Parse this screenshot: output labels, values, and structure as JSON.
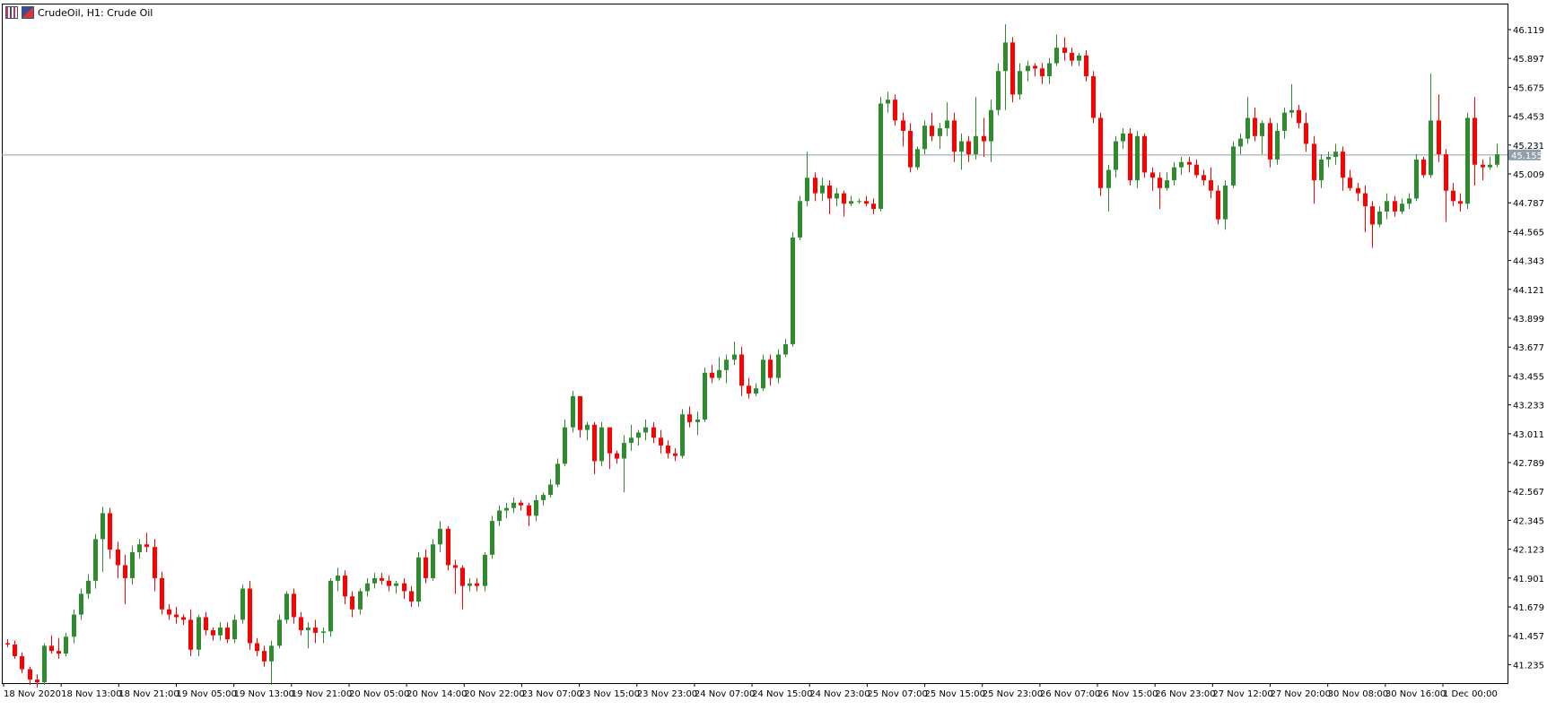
{
  "window": {
    "title": "CrudeOil, H1:  Crude Oil",
    "icons": [
      "chart-bars-icon",
      "chart-split-icon"
    ]
  },
  "colors": {
    "bull": "#2e8b2e",
    "bear": "#ff0000",
    "grid_frame": "#000000",
    "bid_line": "#8fa0a8",
    "price_tag_bg": "#8fa0a8",
    "price_tag_text": "#ffffff"
  },
  "chart_data": {
    "type": "candlestick",
    "symbol": "CrudeOil",
    "timeframe": "H1",
    "description": "Crude Oil",
    "current_price": "45.155",
    "ylim": [
      41.1,
      46.2
    ],
    "y_ticks": [
      "46.119",
      "45.897",
      "45.675",
      "45.453",
      "45.231",
      "45.009",
      "44.787",
      "44.565",
      "44.343",
      "44.121",
      "43.899",
      "43.677",
      "43.455",
      "43.233",
      "43.011",
      "42.789",
      "42.567",
      "42.345",
      "42.123",
      "41.901",
      "41.679",
      "41.457",
      "41.235"
    ],
    "x_ticks": [
      "18 Nov 2020",
      "18 Nov 13:00",
      "18 Nov 21:00",
      "19 Nov 05:00",
      "19 Nov 13:00",
      "19 Nov 21:00",
      "20 Nov 05:00",
      "20 Nov 14:00",
      "20 Nov 22:00",
      "23 Nov 07:00",
      "23 Nov 15:00",
      "23 Nov 23:00",
      "24 Nov 07:00",
      "24 Nov 15:00",
      "24 Nov 23:00",
      "25 Nov 07:00",
      "25 Nov 15:00",
      "25 Nov 23:00",
      "26 Nov 07:00",
      "26 Nov 15:00",
      "26 Nov 23:00",
      "27 Nov 12:00",
      "27 Nov 20:00",
      "30 Nov 08:00",
      "30 Nov 16:00",
      "1 Dec 00:00"
    ],
    "candles": [
      [
        41.4,
        41.43,
        41.37,
        41.39
      ],
      [
        41.39,
        41.42,
        41.28,
        41.3
      ],
      [
        41.3,
        41.33,
        41.17,
        41.2
      ],
      [
        41.2,
        41.22,
        41.08,
        41.12
      ],
      [
        41.12,
        41.16,
        41.06,
        41.1
      ],
      [
        41.1,
        41.4,
        41.08,
        41.38
      ],
      [
        41.38,
        41.46,
        41.32,
        41.34
      ],
      [
        41.34,
        41.44,
        41.28,
        41.32
      ],
      [
        41.32,
        41.48,
        41.3,
        41.45
      ],
      [
        41.45,
        41.66,
        41.4,
        41.62
      ],
      [
        41.62,
        41.82,
        41.58,
        41.78
      ],
      [
        41.78,
        41.93,
        41.74,
        41.88
      ],
      [
        41.88,
        42.24,
        41.82,
        42.2
      ],
      [
        42.2,
        42.45,
        41.95,
        42.4
      ],
      [
        42.4,
        42.44,
        42.05,
        42.12
      ],
      [
        42.12,
        42.18,
        41.9,
        42.0
      ],
      [
        42.0,
        42.08,
        41.7,
        41.9
      ],
      [
        41.9,
        42.15,
        41.85,
        42.1
      ],
      [
        42.1,
        42.2,
        42.05,
        42.16
      ],
      [
        42.16,
        42.25,
        42.1,
        42.14
      ],
      [
        42.14,
        42.2,
        41.8,
        41.9
      ],
      [
        41.9,
        41.95,
        41.62,
        41.66
      ],
      [
        41.66,
        41.7,
        41.58,
        41.62
      ],
      [
        41.62,
        41.68,
        41.55,
        41.6
      ],
      [
        41.6,
        41.62,
        41.54,
        41.58
      ],
      [
        41.58,
        41.66,
        41.3,
        41.35
      ],
      [
        41.35,
        41.62,
        41.3,
        41.6
      ],
      [
        41.6,
        41.64,
        41.46,
        41.5
      ],
      [
        41.5,
        41.52,
        41.42,
        41.46
      ],
      [
        41.46,
        41.56,
        41.42,
        41.52
      ],
      [
        41.52,
        41.56,
        41.4,
        41.43
      ],
      [
        41.43,
        41.62,
        41.4,
        41.58
      ],
      [
        41.58,
        41.85,
        41.55,
        41.82
      ],
      [
        41.82,
        41.88,
        41.35,
        41.4
      ],
      [
        41.4,
        41.44,
        41.3,
        41.34
      ],
      [
        41.34,
        41.38,
        41.22,
        41.26
      ],
      [
        41.26,
        41.42,
        41.08,
        41.38
      ],
      [
        41.38,
        41.62,
        41.36,
        41.58
      ],
      [
        41.58,
        41.8,
        41.55,
        41.78
      ],
      [
        41.78,
        41.82,
        41.55,
        41.6
      ],
      [
        41.6,
        41.64,
        41.46,
        41.5
      ],
      [
        41.5,
        41.56,
        41.36,
        41.52
      ],
      [
        41.52,
        41.58,
        41.4,
        41.48
      ],
      [
        41.48,
        41.52,
        41.4,
        41.49
      ],
      [
        41.49,
        41.9,
        41.45,
        41.88
      ],
      [
        41.88,
        41.98,
        41.8,
        41.92
      ],
      [
        41.92,
        41.96,
        41.7,
        41.76
      ],
      [
        41.76,
        41.8,
        41.6,
        41.66
      ],
      [
        41.66,
        41.82,
        41.62,
        41.8
      ],
      [
        41.8,
        41.9,
        41.76,
        41.86
      ],
      [
        41.86,
        41.94,
        41.82,
        41.9
      ],
      [
        41.9,
        41.94,
        41.85,
        41.88
      ],
      [
        41.88,
        41.92,
        41.8,
        41.84
      ],
      [
        41.84,
        41.88,
        41.78,
        41.86
      ],
      [
        41.86,
        41.9,
        41.74,
        41.8
      ],
      [
        41.8,
        41.84,
        41.68,
        41.72
      ],
      [
        41.72,
        42.1,
        41.68,
        42.06
      ],
      [
        42.06,
        42.12,
        41.86,
        41.9
      ],
      [
        41.9,
        42.2,
        41.88,
        42.16
      ],
      [
        42.16,
        42.34,
        42.1,
        42.28
      ],
      [
        42.28,
        42.3,
        41.96,
        42.0
      ],
      [
        42.0,
        42.04,
        41.78,
        41.98
      ],
      [
        41.98,
        42.0,
        41.66,
        41.84
      ],
      [
        41.84,
        41.9,
        41.8,
        41.86
      ],
      [
        41.86,
        41.9,
        41.8,
        41.84
      ],
      [
        41.84,
        42.1,
        41.8,
        42.08
      ],
      [
        42.08,
        42.38,
        42.05,
        42.34
      ],
      [
        42.34,
        42.46,
        42.3,
        42.42
      ],
      [
        42.42,
        42.48,
        42.36,
        42.44
      ],
      [
        42.44,
        42.52,
        42.4,
        42.48
      ],
      [
        42.48,
        42.5,
        42.42,
        42.46
      ],
      [
        42.46,
        42.48,
        42.3,
        42.38
      ],
      [
        42.38,
        42.54,
        42.34,
        42.5
      ],
      [
        42.5,
        42.56,
        42.46,
        42.54
      ],
      [
        42.54,
        42.66,
        42.52,
        42.62
      ],
      [
        42.62,
        42.82,
        42.6,
        42.78
      ],
      [
        42.78,
        43.12,
        42.76,
        43.06
      ],
      [
        43.06,
        43.34,
        43.02,
        43.3
      ],
      [
        43.3,
        43.3,
        42.98,
        43.04
      ],
      [
        43.04,
        43.1,
        42.96,
        43.08
      ],
      [
        43.08,
        43.1,
        42.7,
        42.8
      ],
      [
        42.8,
        43.1,
        42.76,
        43.06
      ],
      [
        43.06,
        43.06,
        42.74,
        42.86
      ],
      [
        42.86,
        42.88,
        42.78,
        42.82
      ],
      [
        42.82,
        43.0,
        42.56,
        42.94
      ],
      [
        42.94,
        43.08,
        42.88,
        42.98
      ],
      [
        42.98,
        43.04,
        42.92,
        43.02
      ],
      [
        43.02,
        43.12,
        42.96,
        43.06
      ],
      [
        43.06,
        43.1,
        42.94,
        42.98
      ],
      [
        42.98,
        43.04,
        42.86,
        42.92
      ],
      [
        42.92,
        42.96,
        42.82,
        42.86
      ],
      [
        42.86,
        42.9,
        42.8,
        42.84
      ],
      [
        42.84,
        43.2,
        42.82,
        43.16
      ],
      [
        43.16,
        43.22,
        43.06,
        43.1
      ],
      [
        43.1,
        43.18,
        43.0,
        43.12
      ],
      [
        43.12,
        43.52,
        43.1,
        43.48
      ],
      [
        43.48,
        43.54,
        43.4,
        43.44
      ],
      [
        43.44,
        43.6,
        43.42,
        43.5
      ],
      [
        43.5,
        43.62,
        43.4,
        43.58
      ],
      [
        43.58,
        43.72,
        43.54,
        43.62
      ],
      [
        43.62,
        43.68,
        43.3,
        43.38
      ],
      [
        43.38,
        43.44,
        43.28,
        43.32
      ],
      [
        43.32,
        43.4,
        43.3,
        43.36
      ],
      [
        43.36,
        43.62,
        43.34,
        43.58
      ],
      [
        43.58,
        43.62,
        43.38,
        43.44
      ],
      [
        43.44,
        43.66,
        43.4,
        43.62
      ],
      [
        43.62,
        43.74,
        43.6,
        43.7
      ],
      [
        43.7,
        44.56,
        43.68,
        44.52
      ],
      [
        44.52,
        44.84,
        44.5,
        44.8
      ],
      [
        44.8,
        45.18,
        44.76,
        44.98
      ],
      [
        44.98,
        45.02,
        44.8,
        44.86
      ],
      [
        44.86,
        44.98,
        44.8,
        44.92
      ],
      [
        44.92,
        44.96,
        44.7,
        44.82
      ],
      [
        44.82,
        44.9,
        44.76,
        44.86
      ],
      [
        44.86,
        44.88,
        44.68,
        44.78
      ],
      [
        44.78,
        44.84,
        44.76,
        44.8
      ],
      [
        44.8,
        44.82,
        44.78,
        44.8
      ],
      [
        44.8,
        44.84,
        44.76,
        44.78
      ],
      [
        44.78,
        44.82,
        44.7,
        44.74
      ],
      [
        44.74,
        45.6,
        44.72,
        45.55
      ],
      [
        45.55,
        45.64,
        45.48,
        45.58
      ],
      [
        45.58,
        45.62,
        45.38,
        45.42
      ],
      [
        45.42,
        45.48,
        45.22,
        45.34
      ],
      [
        45.34,
        45.4,
        45.02,
        45.06
      ],
      [
        45.06,
        45.22,
        45.04,
        45.2
      ],
      [
        45.2,
        45.42,
        45.16,
        45.38
      ],
      [
        45.38,
        45.48,
        45.26,
        45.3
      ],
      [
        45.3,
        45.4,
        45.2,
        45.36
      ],
      [
        45.36,
        45.56,
        45.3,
        45.42
      ],
      [
        45.42,
        45.48,
        45.1,
        45.18
      ],
      [
        45.18,
        45.32,
        45.04,
        45.26
      ],
      [
        45.26,
        45.3,
        45.1,
        45.16
      ],
      [
        45.16,
        45.6,
        45.12,
        45.3
      ],
      [
        45.3,
        45.44,
        45.14,
        45.26
      ],
      [
        45.26,
        45.58,
        45.1,
        45.5
      ],
      [
        45.5,
        45.86,
        45.46,
        45.8
      ],
      [
        45.8,
        46.16,
        45.5,
        46.02
      ],
      [
        46.02,
        46.06,
        45.56,
        45.62
      ],
      [
        45.62,
        45.86,
        45.58,
        45.8
      ],
      [
        45.8,
        45.88,
        45.72,
        45.84
      ],
      [
        45.84,
        45.86,
        45.76,
        45.82
      ],
      [
        45.82,
        45.86,
        45.7,
        45.76
      ],
      [
        45.76,
        45.9,
        45.7,
        45.86
      ],
      [
        45.86,
        46.08,
        45.84,
        45.98
      ],
      [
        45.98,
        46.06,
        45.88,
        45.94
      ],
      [
        45.94,
        45.98,
        45.84,
        45.88
      ],
      [
        45.88,
        45.94,
        45.84,
        45.92
      ],
      [
        45.92,
        45.96,
        45.72,
        45.76
      ],
      [
        45.76,
        45.8,
        45.4,
        45.44
      ],
      [
        45.44,
        45.48,
        44.84,
        44.9
      ],
      [
        44.9,
        45.08,
        44.72,
        45.04
      ],
      [
        45.04,
        45.3,
        44.98,
        45.26
      ],
      [
        45.26,
        45.36,
        45.2,
        45.32
      ],
      [
        45.32,
        45.36,
        44.92,
        44.96
      ],
      [
        44.96,
        45.34,
        44.9,
        45.3
      ],
      [
        45.3,
        45.32,
        44.98,
        45.02
      ],
      [
        45.02,
        45.06,
        44.88,
        44.98
      ],
      [
        44.98,
        45.02,
        44.74,
        44.9
      ],
      [
        44.9,
        45.02,
        44.88,
        44.96
      ],
      [
        44.96,
        45.1,
        44.92,
        45.06
      ],
      [
        45.06,
        45.14,
        45.0,
        45.1
      ],
      [
        45.1,
        45.14,
        45.02,
        45.08
      ],
      [
        45.08,
        45.12,
        44.98,
        45.0
      ],
      [
        45.0,
        45.04,
        44.92,
        44.96
      ],
      [
        44.96,
        45.06,
        44.82,
        44.88
      ],
      [
        44.88,
        44.92,
        44.62,
        44.66
      ],
      [
        44.66,
        44.96,
        44.58,
        44.92
      ],
      [
        44.92,
        45.26,
        44.9,
        45.22
      ],
      [
        45.22,
        45.32,
        45.16,
        45.28
      ],
      [
        45.28,
        45.6,
        45.24,
        45.44
      ],
      [
        45.44,
        45.52,
        45.26,
        45.3
      ],
      [
        45.3,
        45.42,
        45.16,
        45.4
      ],
      [
        45.4,
        45.44,
        45.06,
        45.12
      ],
      [
        45.12,
        45.4,
        45.08,
        45.34
      ],
      [
        45.34,
        45.52,
        45.28,
        45.48
      ],
      [
        45.48,
        45.7,
        45.44,
        45.5
      ],
      [
        45.5,
        45.54,
        45.36,
        45.4
      ],
      [
        45.4,
        45.48,
        45.18,
        45.24
      ],
      [
        45.24,
        45.3,
        44.78,
        44.96
      ],
      [
        44.96,
        45.16,
        44.9,
        45.12
      ],
      [
        45.12,
        45.18,
        45.06,
        45.14
      ],
      [
        45.14,
        45.24,
        45.08,
        45.18
      ],
      [
        45.18,
        45.22,
        44.88,
        44.98
      ],
      [
        44.98,
        45.04,
        44.88,
        44.9
      ],
      [
        44.9,
        44.94,
        44.8,
        44.86
      ],
      [
        44.86,
        44.92,
        44.56,
        44.76
      ],
      [
        44.76,
        44.8,
        44.44,
        44.62
      ],
      [
        44.62,
        44.76,
        44.6,
        44.72
      ],
      [
        44.72,
        44.86,
        44.66,
        44.8
      ],
      [
        44.8,
        44.84,
        44.68,
        44.72
      ],
      [
        44.72,
        44.82,
        44.7,
        44.78
      ],
      [
        44.78,
        44.86,
        44.74,
        44.82
      ],
      [
        44.82,
        45.16,
        44.8,
        45.12
      ],
      [
        45.12,
        45.14,
        44.98,
        45.0
      ],
      [
        45.0,
        45.78,
        44.98,
        45.42
      ],
      [
        45.42,
        45.62,
        45.1,
        45.16
      ],
      [
        45.16,
        45.2,
        44.64,
        44.88
      ],
      [
        44.88,
        44.94,
        44.76,
        44.8
      ],
      [
        44.8,
        44.86,
        44.72,
        44.78
      ],
      [
        44.78,
        45.48,
        44.74,
        45.44
      ],
      [
        45.44,
        45.6,
        44.92,
        45.08
      ],
      [
        45.08,
        45.12,
        44.96,
        45.06
      ],
      [
        45.06,
        45.14,
        45.04,
        45.08
      ],
      [
        45.08,
        45.24,
        45.06,
        45.16
      ]
    ]
  }
}
